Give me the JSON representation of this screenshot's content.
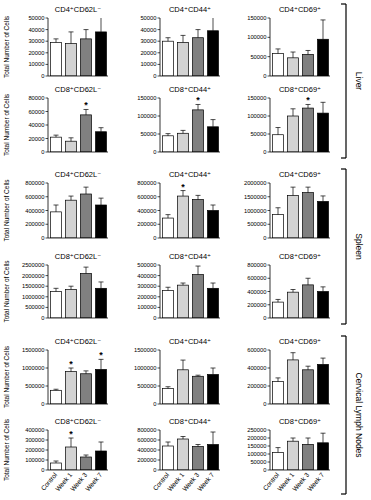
{
  "sections": [
    "Liver",
    "Spleen",
    "Cervical Lymph Nodes"
  ],
  "chart_data": [
    {
      "type": "bar",
      "title": "CD4⁺CD62L⁻",
      "ylabel": "Total Number of Cells",
      "categories": [
        "Control",
        "Week 1",
        "Week 3",
        "Week 7"
      ],
      "values": [
        29000,
        28000,
        32000,
        38000
      ],
      "errors": [
        3000,
        10000,
        8000,
        15000
      ],
      "colors": [
        "#ffffff",
        "#d3d3d3",
        "#808080",
        "#000000"
      ],
      "ylim": [
        0,
        50000
      ],
      "yticks": [
        0,
        10000,
        20000,
        30000,
        40000,
        50000
      ],
      "grid": false,
      "tick_labels": "y",
      "annotations": []
    },
    {
      "type": "bar",
      "title": "CD4⁺CD44⁺",
      "categories": [
        "Control",
        "Week 1",
        "Week 3",
        "Week 7"
      ],
      "values": [
        30000,
        29000,
        33000,
        39000
      ],
      "errors": [
        3000,
        6000,
        7000,
        14000
      ],
      "colors": [
        "#ffffff",
        "#d3d3d3",
        "#808080",
        "#000000"
      ],
      "ylim": [
        0,
        50000
      ],
      "yticks": [
        0,
        10000,
        20000,
        30000,
        40000,
        50000
      ],
      "grid": false,
      "tick_labels": "y",
      "annotations": []
    },
    {
      "type": "bar",
      "title": "CD4⁺CD69⁺",
      "categories": [
        "Control",
        "Week 1",
        "Week 3",
        "Week 7"
      ],
      "values": [
        58000,
        47000,
        56000,
        95000
      ],
      "errors": [
        12000,
        15000,
        10000,
        50000
      ],
      "colors": [
        "#ffffff",
        "#d3d3d3",
        "#808080",
        "#000000"
      ],
      "ylim": [
        0,
        150000
      ],
      "yticks": [
        0,
        50000,
        100000,
        150000
      ],
      "grid": false,
      "tick_labels": "y",
      "annotations": []
    },
    {
      "type": "bar",
      "title": "CD8⁺CD62L⁻",
      "ylabel": "Total Number of Cells",
      "categories": [
        "Control",
        "Week 1",
        "Week 3",
        "Week 7"
      ],
      "values": [
        22000,
        16000,
        55000,
        30000
      ],
      "errors": [
        3000,
        5000,
        8000,
        6000
      ],
      "colors": [
        "#ffffff",
        "#d3d3d3",
        "#808080",
        "#000000"
      ],
      "ylim": [
        0,
        80000
      ],
      "yticks": [
        0,
        20000,
        40000,
        60000,
        80000
      ],
      "grid": false,
      "tick_labels": "y",
      "annotations": [
        {
          "category": "Week 3",
          "text": "*"
        }
      ]
    },
    {
      "type": "bar",
      "title": "CD8⁺CD44⁺",
      "categories": [
        "Control",
        "Week 1",
        "Week 3",
        "Week 7"
      ],
      "values": [
        45000,
        52000,
        117000,
        70000
      ],
      "errors": [
        6000,
        8000,
        15000,
        20000
      ],
      "colors": [
        "#ffffff",
        "#d3d3d3",
        "#808080",
        "#000000"
      ],
      "ylim": [
        0,
        150000
      ],
      "yticks": [
        0,
        50000,
        100000,
        150000
      ],
      "grid": false,
      "tick_labels": "y",
      "annotations": [
        {
          "category": "Week 3",
          "text": "*"
        }
      ]
    },
    {
      "type": "bar",
      "title": "CD8⁺CD69⁺",
      "categories": [
        "Control",
        "Week 1",
        "Week 3",
        "Week 7"
      ],
      "values": [
        48000,
        100000,
        122000,
        108000
      ],
      "errors": [
        20000,
        20000,
        10000,
        30000
      ],
      "colors": [
        "#ffffff",
        "#d3d3d3",
        "#808080",
        "#000000"
      ],
      "ylim": [
        0,
        150000
      ],
      "yticks": [
        0,
        50000,
        100000,
        150000
      ],
      "grid": false,
      "tick_labels": "y",
      "annotations": [
        {
          "category": "Week 3",
          "text": "*"
        }
      ]
    },
    {
      "type": "bar",
      "title": "CD4⁺CD62L⁻",
      "ylabel": "Total Number of Cells",
      "categories": [
        "Control",
        "Week 1",
        "Week 3",
        "Week 7"
      ],
      "values": [
        380000,
        550000,
        640000,
        480000
      ],
      "errors": [
        100000,
        60000,
        100000,
        100000
      ],
      "colors": [
        "#ffffff",
        "#d3d3d3",
        "#808080",
        "#000000"
      ],
      "ylim": [
        0,
        800000
      ],
      "yticks": [
        0,
        200000,
        400000,
        600000,
        800000
      ],
      "grid": false,
      "tick_labels": "y",
      "annotations": []
    },
    {
      "type": "bar",
      "title": "CD4⁺CD44⁺",
      "categories": [
        "Control",
        "Week 1",
        "Week 3",
        "Week 7"
      ],
      "values": [
        290000,
        610000,
        560000,
        400000
      ],
      "errors": [
        50000,
        80000,
        60000,
        80000
      ],
      "colors": [
        "#ffffff",
        "#d3d3d3",
        "#808080",
        "#000000"
      ],
      "ylim": [
        0,
        800000
      ],
      "yticks": [
        0,
        200000,
        400000,
        600000,
        800000
      ],
      "grid": false,
      "tick_labels": "y",
      "annotations": [
        {
          "category": "Week 1",
          "text": "*"
        }
      ]
    },
    {
      "type": "bar",
      "title": "CD4⁺CD69⁺",
      "categories": [
        "Control",
        "Week 1",
        "Week 3",
        "Week 7"
      ],
      "values": [
        850000,
        1550000,
        1650000,
        1330000
      ],
      "errors": [
        250000,
        300000,
        200000,
        200000
      ],
      "colors": [
        "#ffffff",
        "#d3d3d3",
        "#808080",
        "#000000"
      ],
      "ylim": [
        0,
        2000000
      ],
      "yticks": [
        0,
        500000,
        1000000,
        1500000,
        2000000
      ],
      "grid": false,
      "tick_labels": "y",
      "annotations": []
    },
    {
      "type": "bar",
      "title": "CD8⁺CD62L⁻",
      "ylabel": "Total Number of Cells",
      "categories": [
        "Control",
        "Week 1",
        "Week 3",
        "Week 7"
      ],
      "values": [
        1250000,
        1350000,
        2100000,
        1400000
      ],
      "errors": [
        150000,
        150000,
        300000,
        300000
      ],
      "colors": [
        "#ffffff",
        "#d3d3d3",
        "#808080",
        "#000000"
      ],
      "ylim": [
        0,
        2500000
      ],
      "yticks": [
        0,
        500000,
        1000000,
        1500000,
        2000000,
        2500000
      ],
      "grid": false,
      "tick_labels": "y",
      "annotations": []
    },
    {
      "type": "bar",
      "title": "CD8⁺CD44⁺",
      "categories": [
        "Control",
        "Week 1",
        "Week 3",
        "Week 7"
      ],
      "values": [
        260000,
        310000,
        410000,
        280000
      ],
      "errors": [
        30000,
        20000,
        80000,
        50000
      ],
      "colors": [
        "#ffffff",
        "#d3d3d3",
        "#808080",
        "#000000"
      ],
      "ylim": [
        0,
        500000
      ],
      "yticks": [
        0,
        100000,
        200000,
        300000,
        400000,
        500000
      ],
      "grid": false,
      "tick_labels": "y",
      "annotations": []
    },
    {
      "type": "bar",
      "title": "CD8⁺CD69⁺",
      "categories": [
        "Control",
        "Week 1",
        "Week 3",
        "Week 7"
      ],
      "values": [
        240000,
        390000,
        500000,
        400000
      ],
      "errors": [
        40000,
        40000,
        100000,
        70000
      ],
      "colors": [
        "#ffffff",
        "#d3d3d3",
        "#808080",
        "#000000"
      ],
      "ylim": [
        0,
        800000
      ],
      "yticks": [
        0,
        200000,
        400000,
        600000,
        800000
      ],
      "grid": false,
      "tick_labels": "y",
      "annotations": []
    },
    {
      "type": "bar",
      "title": "CD4⁺CD62L⁻",
      "ylabel": "Total Number of Cells",
      "categories": [
        "Control",
        "Week 1",
        "Week 3",
        "Week 7"
      ],
      "values": [
        380000,
        900000,
        840000,
        960000
      ],
      "errors": [
        30000,
        100000,
        80000,
        280000
      ],
      "colors": [
        "#ffffff",
        "#d3d3d3",
        "#808080",
        "#000000"
      ],
      "ylim": [
        0,
        1500000
      ],
      "yticks": [
        0,
        500000,
        1000000,
        1500000
      ],
      "grid": false,
      "tick_labels": "y",
      "annotations": [
        {
          "category": "Week 1",
          "text": "*"
        },
        {
          "category": "Week 7",
          "text": "*"
        }
      ]
    },
    {
      "type": "bar",
      "title": "CD4⁺CD44⁺",
      "categories": [
        "Control",
        "Week 1",
        "Week 3",
        "Week 7"
      ],
      "values": [
        430000,
        950000,
        770000,
        820000
      ],
      "errors": [
        50000,
        270000,
        30000,
        180000
      ],
      "colors": [
        "#ffffff",
        "#d3d3d3",
        "#808080",
        "#000000"
      ],
      "ylim": [
        0,
        1500000
      ],
      "yticks": [
        0,
        500000,
        1000000,
        1500000
      ],
      "grid": false,
      "tick_labels": "y",
      "annotations": []
    },
    {
      "type": "bar",
      "title": "CD4⁺CD69⁺",
      "categories": [
        "Control",
        "Week 1",
        "Week 3",
        "Week 7"
      ],
      "values": [
        250000,
        490000,
        380000,
        440000
      ],
      "errors": [
        40000,
        80000,
        40000,
        70000
      ],
      "colors": [
        "#ffffff",
        "#d3d3d3",
        "#808080",
        "#000000"
      ],
      "ylim": [
        0,
        600000
      ],
      "yticks": [
        0,
        200000,
        400000,
        600000
      ],
      "grid": false,
      "tick_labels": "y",
      "annotations": []
    },
    {
      "type": "bar",
      "title": "CD8⁺CD62L⁻",
      "ylabel": "Total Number of Cells",
      "categories": [
        "Control",
        "Week 1",
        "Week 3",
        "Week 7"
      ],
      "values": [
        70000,
        230000,
        130000,
        190000
      ],
      "errors": [
        20000,
        90000,
        20000,
        90000
      ],
      "colors": [
        "#ffffff",
        "#d3d3d3",
        "#808080",
        "#000000"
      ],
      "ylim": [
        0,
        400000
      ],
      "yticks": [
        0,
        100000,
        200000,
        300000,
        400000
      ],
      "grid": false,
      "annotations": [
        {
          "category": "Week 1",
          "text": "*"
        }
      ]
    },
    {
      "type": "bar",
      "title": "CD8⁺CD44⁺",
      "categories": [
        "Control",
        "Week 1",
        "Week 3",
        "Week 7"
      ],
      "values": [
        480000,
        620000,
        470000,
        510000
      ],
      "errors": [
        80000,
        50000,
        40000,
        250000
      ],
      "colors": [
        "#ffffff",
        "#d3d3d3",
        "#808080",
        "#000000"
      ],
      "ylim": [
        0,
        800000
      ],
      "yticks": [
        0,
        200000,
        400000,
        600000,
        800000
      ],
      "grid": false,
      "annotations": []
    },
    {
      "type": "bar",
      "title": "CD8⁺CD69⁺",
      "categories": [
        "Control",
        "Week 1",
        "Week 3",
        "Week 7"
      ],
      "values": [
        110000,
        180000,
        160000,
        170000
      ],
      "errors": [
        30000,
        20000,
        40000,
        60000
      ],
      "colors": [
        "#ffffff",
        "#d3d3d3",
        "#808080",
        "#000000"
      ],
      "ylim": [
        0,
        250000
      ],
      "yticks": [
        0,
        50000,
        100000,
        150000,
        200000,
        250000
      ],
      "grid": false,
      "annotations": []
    }
  ]
}
